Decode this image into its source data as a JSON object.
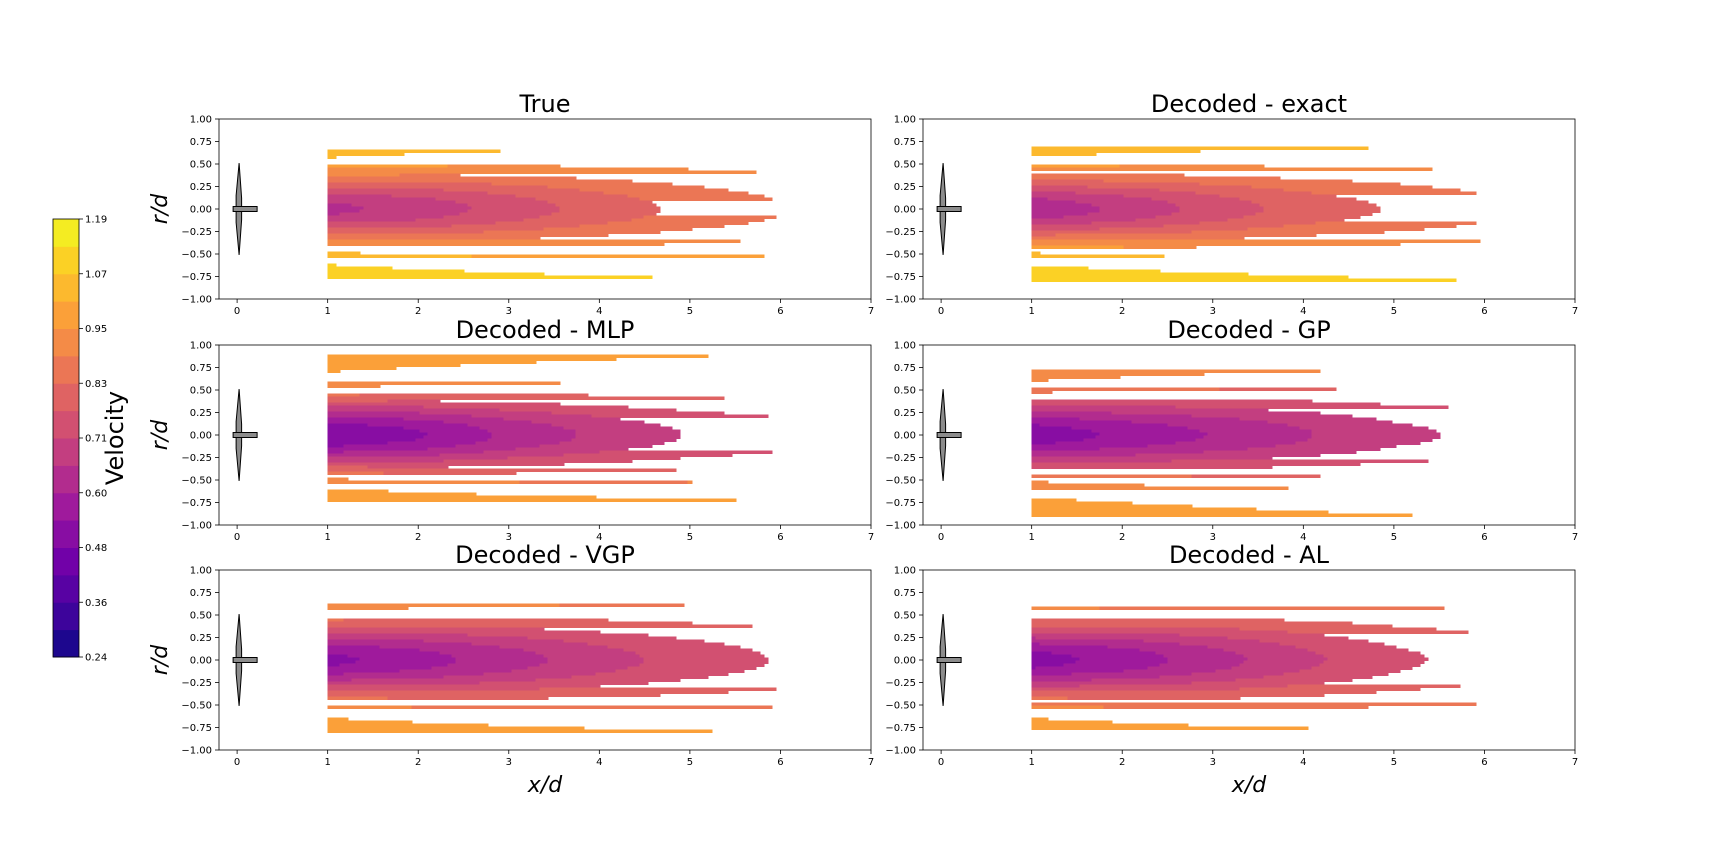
{
  "chart_data": {
    "type": "heatmap",
    "colorbar": {
      "label": "Velocity",
      "tick_labels": [
        "1.19",
        "1.07",
        "0.95",
        "0.83",
        "0.71",
        "0.60",
        "0.48",
        "0.36",
        "0.24"
      ],
      "range": [
        0.24,
        1.19
      ],
      "levels": 16,
      "colormap": [
        "#0d0887",
        "#46039f",
        "#7201a8",
        "#9c179e",
        "#bd3786",
        "#d8576b",
        "#ed7953",
        "#fb9f3a",
        "#fdca26",
        "#f0f921"
      ]
    },
    "x_axis": {
      "label": "x/d",
      "range": [
        -0.2,
        7
      ],
      "ticks": [
        "0",
        "1",
        "2",
        "3",
        "4",
        "5",
        "6",
        "7"
      ]
    },
    "y_axis": {
      "label": "r/d",
      "range": [
        -1,
        1
      ],
      "ticks": [
        "1.00",
        "0.75",
        "0.50",
        "0.25",
        "0.00",
        "−0.25",
        "−0.50",
        "−0.75",
        "−1.00"
      ]
    },
    "field_extent": {
      "x": [
        1,
        6.9
      ],
      "r": [
        -0.98,
        0.96
      ]
    },
    "panels": [
      {
        "title": "True",
        "center_velocity": [
          0.64,
          0.68,
          0.74,
          0.8,
          0.85,
          0.89
        ],
        "wake_halfwidth": [
          0.6,
          0.66,
          0.72,
          0.78,
          0.84,
          0.9
        ],
        "edge_velocity_top": 1.05,
        "edge_velocity_bottom": 1.1
      },
      {
        "title": "Decoded - exact",
        "center_velocity": [
          0.61,
          0.67,
          0.74,
          0.8,
          0.84,
          0.88
        ],
        "wake_halfwidth": [
          0.6,
          0.66,
          0.72,
          0.78,
          0.84,
          0.9
        ],
        "edge_velocity_top": 1.05,
        "edge_velocity_bottom": 1.1
      },
      {
        "title": "Decoded - MLP",
        "center_velocity": [
          0.48,
          0.53,
          0.61,
          0.67,
          0.72,
          0.75
        ],
        "wake_halfwidth": [
          0.62,
          0.68,
          0.74,
          0.8,
          0.86,
          0.92
        ],
        "edge_velocity_top": 0.97,
        "edge_velocity_bottom": 1.0
      },
      {
        "title": "Decoded - GP",
        "center_velocity": [
          0.5,
          0.55,
          0.6,
          0.65,
          0.7,
          0.73
        ],
        "wake_halfwidth": [
          0.62,
          0.68,
          0.74,
          0.8,
          0.86,
          0.92
        ],
        "edge_velocity_top": 0.93,
        "edge_velocity_bottom": 0.97
      },
      {
        "title": "Decoded - VGP",
        "center_velocity": [
          0.52,
          0.57,
          0.63,
          0.69,
          0.74,
          0.78
        ],
        "wake_halfwidth": [
          0.62,
          0.68,
          0.74,
          0.8,
          0.86,
          0.92
        ],
        "edge_velocity_top": 0.95,
        "edge_velocity_bottom": 0.98
      },
      {
        "title": "Decoded - AL",
        "center_velocity": [
          0.51,
          0.56,
          0.63,
          0.7,
          0.76,
          0.8
        ],
        "wake_halfwidth": [
          0.62,
          0.68,
          0.74,
          0.8,
          0.86,
          0.92
        ],
        "edge_velocity_top": 0.95,
        "edge_velocity_bottom": 0.98
      }
    ]
  }
}
